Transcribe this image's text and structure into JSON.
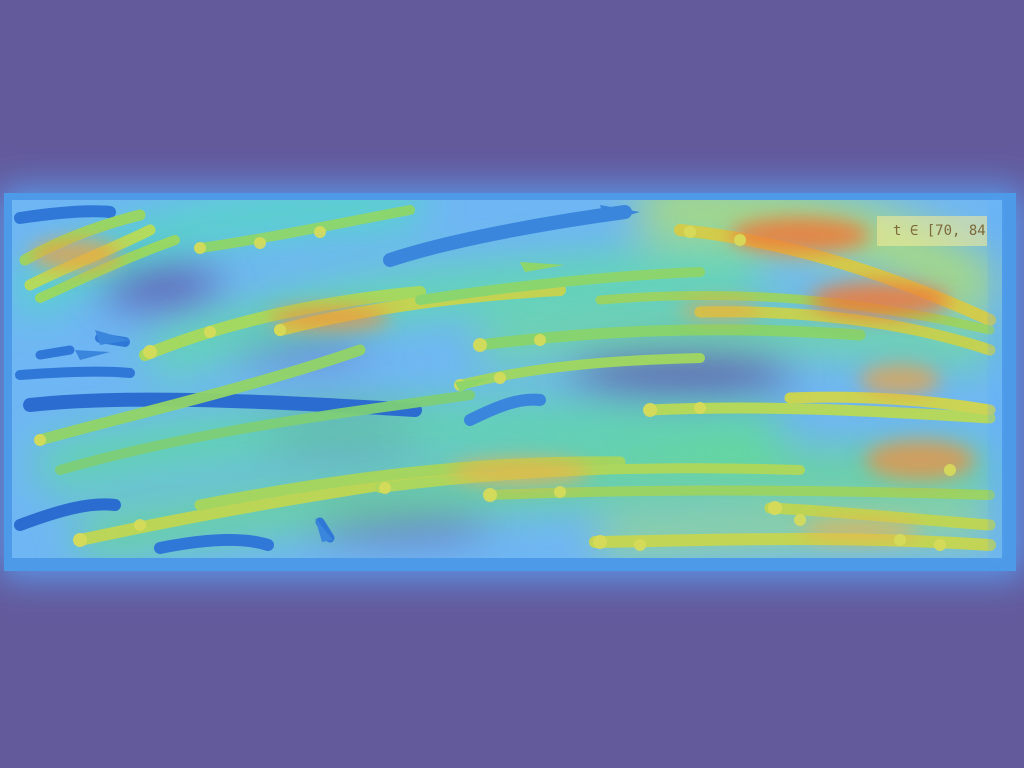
{
  "overlay": {
    "time_window_label": "t ∈ [70, 84",
    "colormap": "jet",
    "background_color": "#635a9c",
    "panel_glow_color": "#5aaaff"
  }
}
